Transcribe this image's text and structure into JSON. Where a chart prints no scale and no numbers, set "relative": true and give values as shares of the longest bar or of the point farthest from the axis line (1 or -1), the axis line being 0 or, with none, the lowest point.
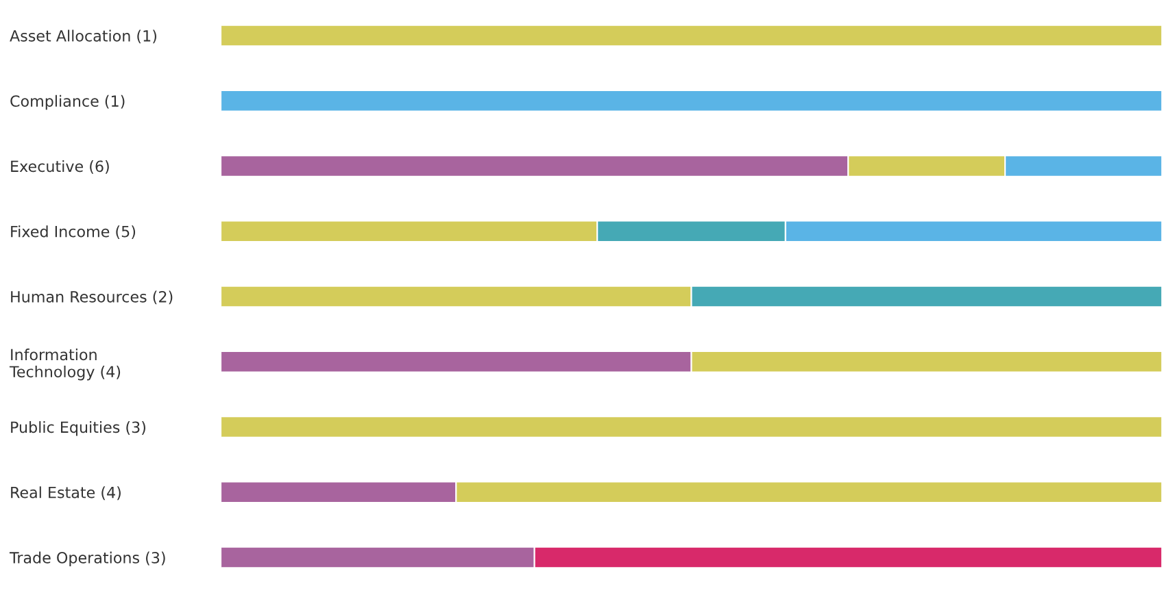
{
  "chart_data": {
    "type": "bar",
    "orientation": "horizontal",
    "stacked": true,
    "relative": true,
    "categories": [
      "Asset Allocation (1)",
      "Compliance (1)",
      "Executive (6)",
      "Fixed Income (5)",
      "Human Resources (2)",
      "Information\nTechnology (4)",
      "Public Equities (3)",
      "Real Estate (4)",
      "Trade Operations (3)"
    ],
    "series": [
      {
        "color": "#a8649e",
        "values": [
          null,
          null,
          0.6666,
          null,
          null,
          0.5,
          null,
          0.25,
          0.3333
        ]
      },
      {
        "color": "#d4cc5a",
        "values": [
          1,
          null,
          0.1667,
          0.4,
          0.5,
          0.5,
          1,
          0.75,
          null
        ]
      },
      {
        "color": "#45a9b5",
        "values": [
          null,
          null,
          null,
          0.2,
          0.5,
          null,
          null,
          null,
          null
        ]
      },
      {
        "color": "#5ab4e6",
        "values": [
          null,
          1,
          0.1667,
          0.4,
          null,
          null,
          null,
          null,
          null
        ]
      },
      {
        "color": "#d8296a",
        "values": [
          null,
          null,
          null,
          null,
          null,
          null,
          null,
          null,
          0.6667
        ]
      }
    ]
  }
}
